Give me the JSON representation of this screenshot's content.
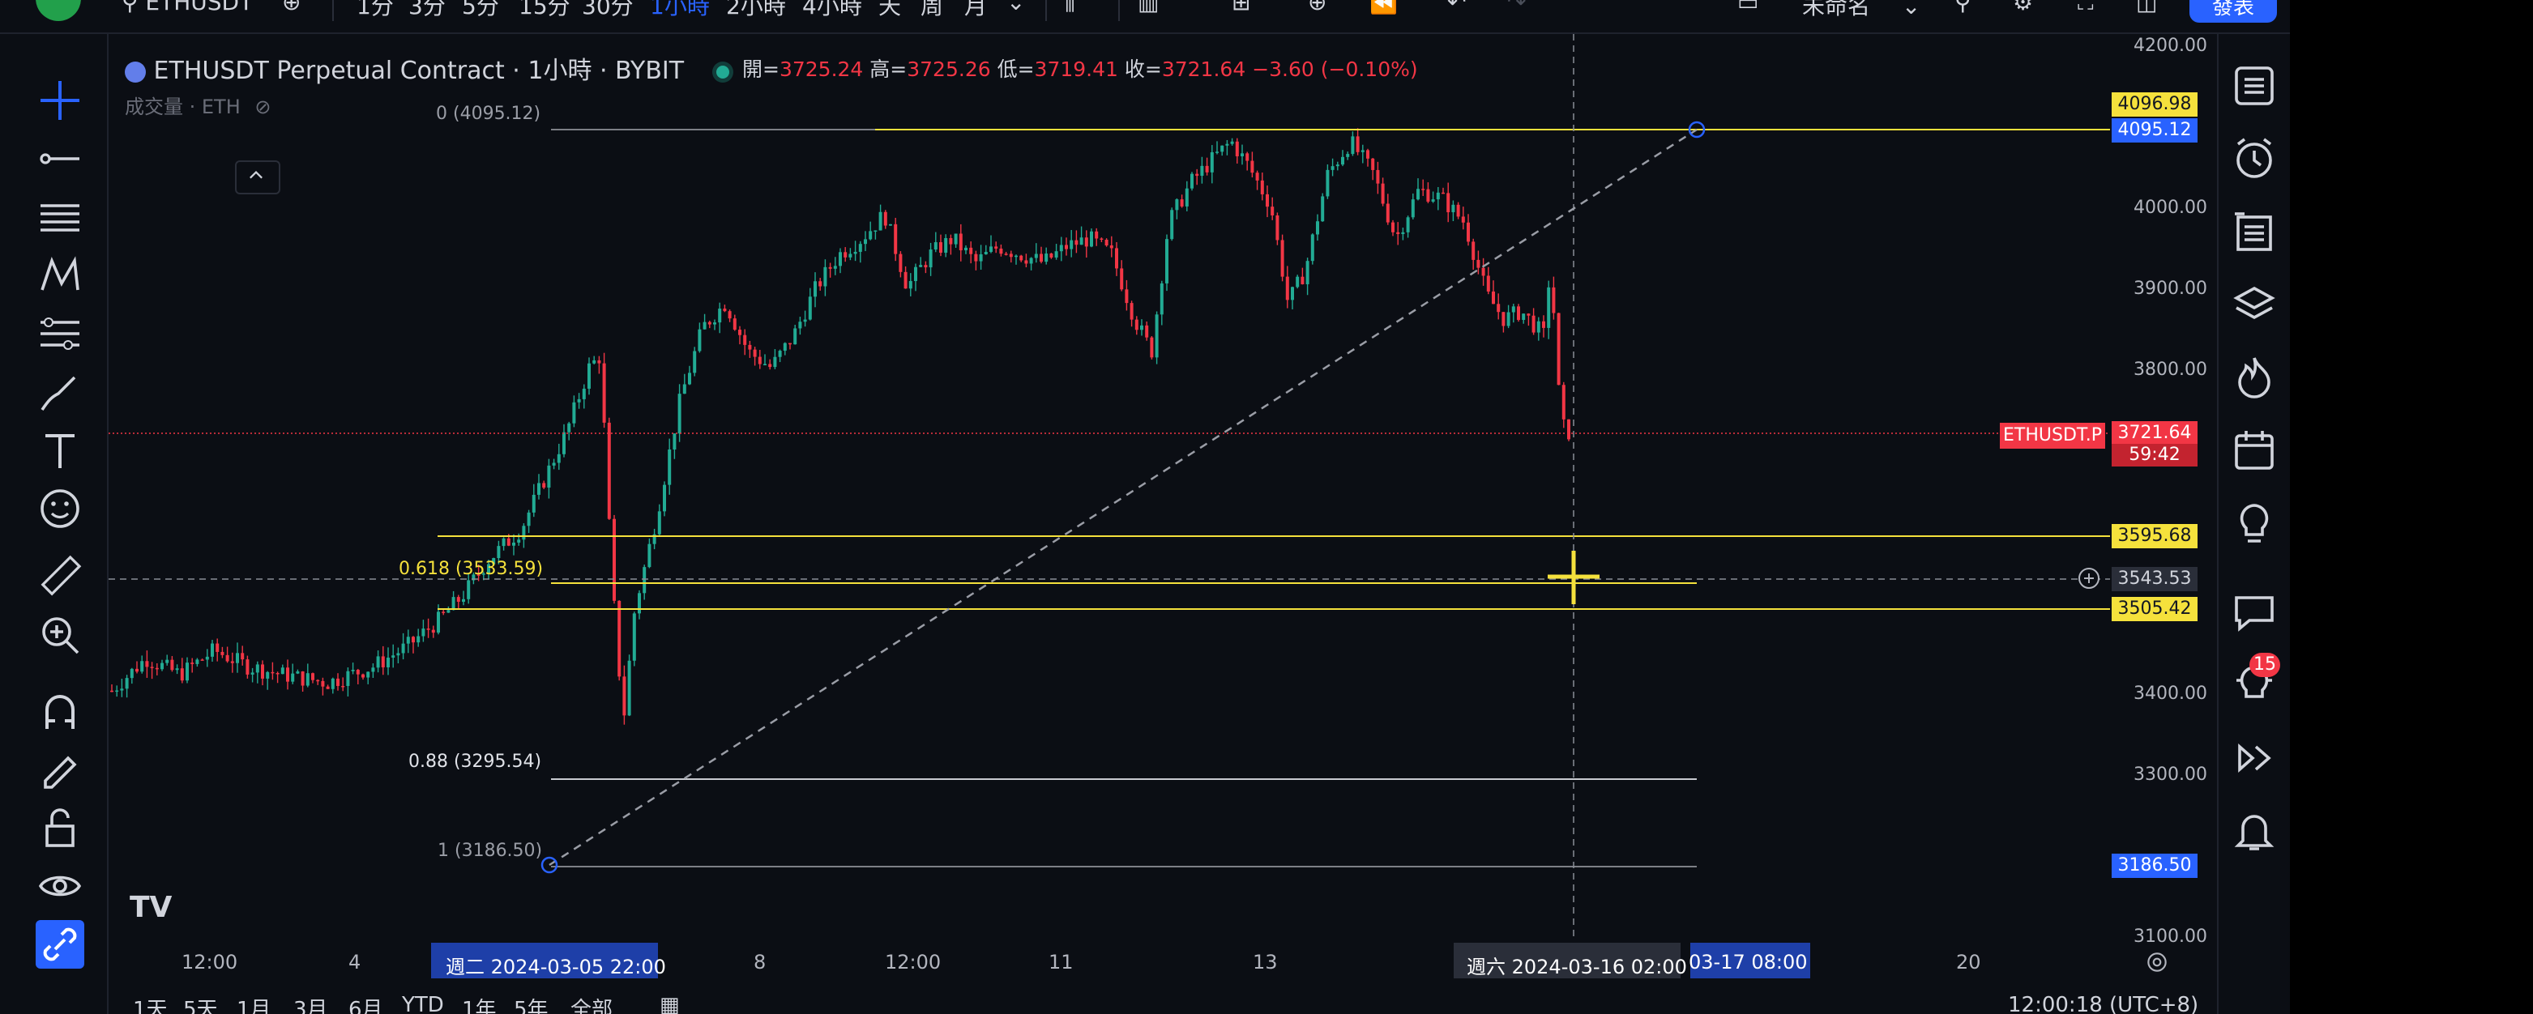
{
  "topbar": {
    "symbol": "ETHUSDT",
    "intervals": [
      "1分",
      "3分",
      "5分",
      "15分",
      "30分",
      "1小時",
      "2小時",
      "4小時",
      "天",
      "周",
      "月"
    ],
    "active_interval": "1小時",
    "layout_name": "未命名",
    "publish_label": "發表"
  },
  "legend": {
    "title": "ETHUSDT Perpetual Contract · 1小時 · BYBIT",
    "open_label": "開=",
    "open": "3725.24",
    "high_label": "高=",
    "high": "3725.26",
    "low_label": "低=",
    "low": "3719.41",
    "close_label": "收=",
    "close": "3721.64",
    "change": "−3.60 (−0.10%)",
    "volume_line": "成交量 · ETH"
  },
  "fib": {
    "level_0": "0 (4095.12)",
    "level_618": "0.618 (3533.59)",
    "level_88": "0.88 (3295.54)",
    "level_1": "1 (3186.50)"
  },
  "price_scale": {
    "ticks": [
      "4200.00",
      "4000.00",
      "3900.00",
      "3800.00",
      "3400.00",
      "3300.00",
      "3100.00"
    ],
    "tags": {
      "t4096": "4096.98",
      "t4095": "4095.12",
      "last": "3721.64",
      "countdown": "59:42",
      "t3595": "3595.68",
      "crosshair": "3543.53",
      "t3505": "3505.42",
      "t3186": "3186.50"
    },
    "symbol_tag": "ETHUSDT.P"
  },
  "time_axis": {
    "labels": [
      "12:00",
      "4",
      "8",
      "12:00",
      "11",
      "13",
      "20"
    ],
    "sel_start": "週二 2024-03-05   22:00",
    "sel_end_day": "週六 2024-03-16   02:00",
    "sel_end_tail": "03-17   08:00"
  },
  "bottombar": {
    "ranges": [
      "1天",
      "5天",
      "1月",
      "3月",
      "6月",
      "YTD",
      "1年",
      "5年",
      "全部"
    ],
    "clock": "12:00:18 (UTC+8)"
  },
  "right_badge": "15",
  "colors": {
    "background": "#0b0e14",
    "up": "#22ab94",
    "down": "#f23645",
    "fib_yellow": "#f5e13c",
    "accent_blue": "#2962ff"
  },
  "icons": {
    "left": [
      "crosshair-icon",
      "trend-line-icon",
      "horizontal-lines-icon",
      "pattern-icon",
      "fib-tool-icon",
      "brush-icon",
      "text-icon",
      "emoji-icon",
      "ruler-icon",
      "zoom-icon",
      "magnet-icon",
      "lock-drawing-icon",
      "unlock-icon",
      "eye-icon",
      "link-icon"
    ],
    "right": [
      "watchlist-icon",
      "alert-clock-icon",
      "data-window-icon",
      "layers-icon",
      "hotlist-icon",
      "calendar-icon",
      "ideas-icon",
      "chat-icon",
      "notifications-icon",
      "replay-icon",
      "bell-icon"
    ]
  },
  "chart_data": {
    "type": "candlestick",
    "ylim": [
      3100,
      4200
    ],
    "path": [
      [
        0,
        3400
      ],
      [
        30,
        3440
      ],
      [
        60,
        3420
      ],
      [
        90,
        3450
      ],
      [
        120,
        3430
      ],
      [
        150,
        3420
      ],
      [
        190,
        3410
      ],
      [
        230,
        3430
      ],
      [
        260,
        3455
      ],
      [
        290,
        3490
      ],
      [
        310,
        3520
      ],
      [
        330,
        3560
      ],
      [
        360,
        3600
      ],
      [
        380,
        3660
      ],
      [
        400,
        3720
      ],
      [
        420,
        3800
      ],
      [
        430,
        3815
      ],
      [
        440,
        3540
      ],
      [
        450,
        3360
      ],
      [
        460,
        3500
      ],
      [
        470,
        3560
      ],
      [
        480,
        3620
      ],
      [
        500,
        3760
      ],
      [
        520,
        3850
      ],
      [
        540,
        3880
      ],
      [
        560,
        3820
      ],
      [
        580,
        3800
      ],
      [
        600,
        3840
      ],
      [
        620,
        3900
      ],
      [
        640,
        3940
      ],
      [
        660,
        3960
      ],
      [
        680,
        3990
      ],
      [
        700,
        3900
      ],
      [
        720,
        3940
      ],
      [
        740,
        3960
      ],
      [
        760,
        3930
      ],
      [
        780,
        3950
      ],
      [
        800,
        3940
      ],
      [
        820,
        3930
      ],
      [
        840,
        3950
      ],
      [
        860,
        3960
      ],
      [
        880,
        3940
      ],
      [
        900,
        3860
      ],
      [
        915,
        3820
      ],
      [
        930,
        3980
      ],
      [
        950,
        4030
      ],
      [
        970,
        4060
      ],
      [
        985,
        4080
      ],
      [
        1000,
        4050
      ],
      [
        1020,
        4000
      ],
      [
        1035,
        3880
      ],
      [
        1050,
        3920
      ],
      [
        1070,
        4040
      ],
      [
        1090,
        4080
      ],
      [
        1110,
        4040
      ],
      [
        1130,
        3960
      ],
      [
        1150,
        4020
      ],
      [
        1170,
        4010
      ],
      [
        1190,
        3980
      ],
      [
        1210,
        3890
      ],
      [
        1225,
        3860
      ],
      [
        1240,
        3870
      ],
      [
        1260,
        3840
      ],
      [
        1266,
        3930
      ],
      [
        1275,
        3730
      ],
      [
        1282,
        3720
      ]
    ]
  }
}
